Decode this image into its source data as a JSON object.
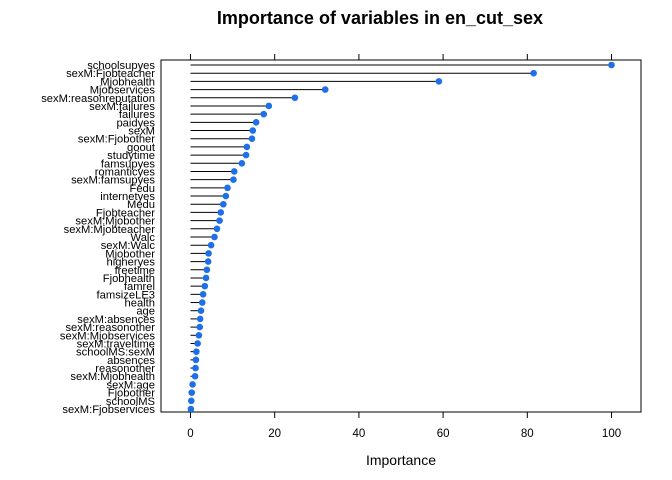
{
  "chart_data": {
    "type": "scatter",
    "title": "Importance of variables in en_cut_sex",
    "xlabel": "Importance",
    "ylabel": "",
    "xlim": [
      -7,
      107
    ],
    "xticks": [
      0,
      20,
      40,
      60,
      80,
      100
    ],
    "point_color": "#1f6fe6",
    "grid": false,
    "categories": [
      "schoolsupyes",
      "sexM:Fjobteacher",
      "Mjobhealth",
      "Mjobservices",
      "sexM:reasonreputation",
      "sexM:failures",
      "failures",
      "paidyes",
      "sexM",
      "sexM:Fjobother",
      "goout",
      "studytime",
      "famsupyes",
      "romanticyes",
      "sexM:famsupyes",
      "Fedu",
      "internetyes",
      "Medu",
      "Fjobteacher",
      "sexM:Mjobother",
      "sexM:Mjobteacher",
      "Walc",
      "sexM:Walc",
      "Mjobother",
      "higheryes",
      "freetime",
      "Fjobhealth",
      "famrel",
      "famsizeLE3",
      "health",
      "age",
      "sexM:absences",
      "sexM:reasonother",
      "sexM:Mjobservices",
      "sexM:traveltime",
      "schoolMS:sexM",
      "absences",
      "reasonother",
      "sexM:Mjobhealth",
      "sexM:age",
      "Fjobother",
      "schoolMS",
      "sexM:Fjobservices"
    ],
    "values": [
      100,
      81.5,
      59,
      32,
      24.8,
      18.6,
      17.4,
      15.6,
      14.8,
      14.6,
      13.4,
      13.2,
      12.2,
      10.4,
      10.2,
      8.8,
      8.4,
      7.8,
      7.2,
      6.9,
      6.3,
      5.7,
      4.9,
      4.3,
      4.2,
      3.9,
      3.7,
      3.4,
      3.0,
      2.8,
      2.5,
      2.3,
      2.2,
      2.0,
      1.7,
      1.4,
      1.3,
      1.2,
      1.1,
      0.5,
      0.3,
      0.2,
      0.1
    ]
  }
}
